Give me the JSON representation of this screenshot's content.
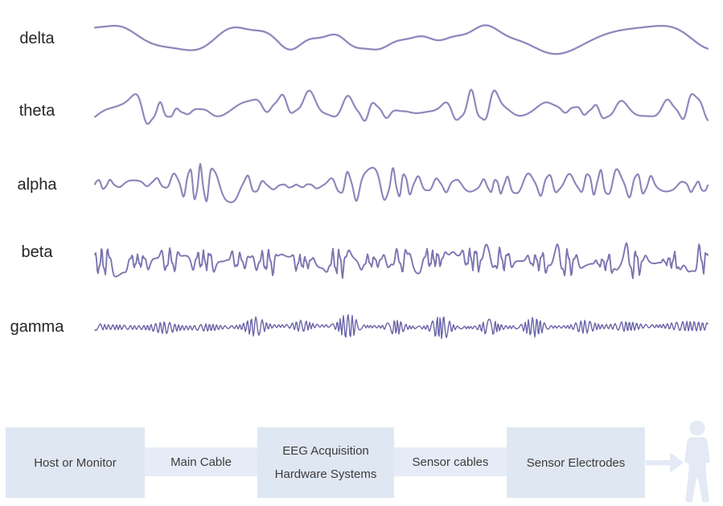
{
  "palette": {
    "background": "#ffffff",
    "band_label_color": "#262626",
    "block_fill": "#dfe7f2",
    "connector_fill": "#e6ecf7",
    "block_text_color": "#3c3c3c",
    "figure_fill": "#e3eaf6",
    "wave_light": "#8e89bd",
    "wave_medium": "#7b75b1",
    "wave_dark": "#6a64a8"
  },
  "bands": [
    {
      "label": "delta",
      "color": "#8e89bd",
      "seed": 7,
      "cycles": 6,
      "amp": 11,
      "amp_var": 0.5,
      "env_f": 1.4,
      "jitter": 1.6,
      "drift": 5,
      "harm": 0.22,
      "harm_mult": 2.6,
      "stroke_width": 2.3,
      "burst": false
    },
    {
      "label": "theta",
      "color": "#8e89bd",
      "seed": 13,
      "cycles": 19,
      "amp": 11,
      "amp_var": 0.8,
      "env_f": 3.2,
      "jitter": 2.2,
      "drift": 3,
      "harm": 0.22,
      "harm_mult": 2.2,
      "stroke_width": 2.2,
      "burst": false
    },
    {
      "label": "alpha",
      "color": "#8a85ba",
      "seed": 23,
      "cycles": 34,
      "amp": 12,
      "amp_var": 0.6,
      "env_f": 3.0,
      "jitter": 2.0,
      "drift": 2,
      "harm": 0.15,
      "harm_mult": 2.4,
      "stroke_width": 2.1,
      "burst": false
    },
    {
      "label": "beta",
      "color": "#7b75b1",
      "seed": 42,
      "cycles": 54,
      "amp": 12,
      "amp_var": 0.7,
      "env_f": 5.0,
      "jitter": 2.8,
      "drift": 2,
      "harm": 0.4,
      "harm_mult": 2.35,
      "stroke_width": 1.9,
      "burst": false
    },
    {
      "label": "gamma",
      "color": "#6a64a8",
      "seed": 99,
      "cycles": 140,
      "amp": 8.5,
      "amp_var": 0.9,
      "env_f": 6.0,
      "jitter": 1.8,
      "drift": 1,
      "harm": 0.0,
      "harm_mult": 2.0,
      "stroke_width": 1.4,
      "burst": true
    }
  ],
  "flow": {
    "blocks": [
      {
        "label": "Host or Monitor",
        "type": "node"
      },
      {
        "label": "Main Cable",
        "type": "connector"
      },
      {
        "label": "EEG Acquisition Hardware Systems",
        "type": "node"
      },
      {
        "label": "Sensor cables",
        "type": "connector"
      },
      {
        "label": "Sensor Electrodes",
        "type": "node"
      }
    ],
    "arrow_icon": "arrow-right-icon",
    "person_icon": "person-icon"
  }
}
